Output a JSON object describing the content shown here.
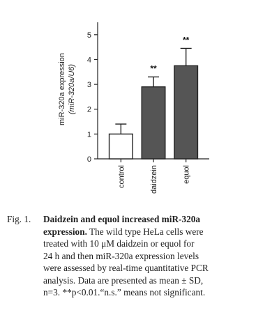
{
  "chart_data": {
    "type": "bar",
    "categories": [
      "control",
      "daidzein",
      "equol"
    ],
    "values": [
      1.0,
      2.9,
      3.75
    ],
    "errors": [
      0.4,
      0.4,
      0.7
    ],
    "significance": [
      "",
      "**",
      "**"
    ],
    "colors": [
      "#ffffff",
      "#555555",
      "#555555"
    ],
    "edge_color": "#222222",
    "ylabel_line1": "miR-320a expression",
    "ylabel_line2": "(miR-320a/U6)",
    "yticks": [
      "0",
      "1",
      "2",
      "3",
      "4",
      "5"
    ],
    "ylim": [
      0,
      5.5
    ],
    "grid": false
  },
  "caption": {
    "label": "Fig. 1.",
    "lines": [
      {
        "bold": "Daidzein and equol increased miR-320a",
        "rest": ""
      },
      {
        "bold": "expression.",
        "rest": " The wild type HeLa cells were"
      },
      {
        "bold": "",
        "rest": "treated with 10 μM daidzein or equol for"
      },
      {
        "bold": "",
        "rest": "24 h and then miR-320a expression levels"
      },
      {
        "bold": "",
        "rest": "were assessed by real-time quantitative PCR"
      },
      {
        "bold": "",
        "rest": "analysis. Data are presented as mean ± SD,"
      },
      {
        "bold": "",
        "rest": "n=3. **p<0.01.“n.s.” means not significant."
      }
    ]
  }
}
